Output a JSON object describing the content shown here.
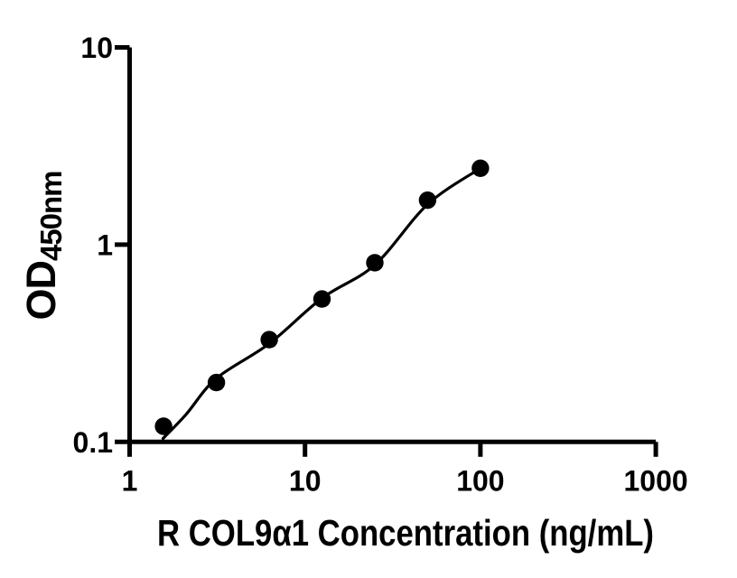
{
  "figure": {
    "background": "#ffffff",
    "foreground": "#000000"
  },
  "chart_data": {
    "type": "scatter",
    "title": "",
    "xlabel": "R COL9α1 Concentration (ng/mL)",
    "ylabel": "OD450nm",
    "ylabel_main": "OD",
    "ylabel_sub": "450nm",
    "x_scale": "log",
    "y_scale": "log",
    "xlim": [
      1,
      1000
    ],
    "ylim": [
      0.1,
      10
    ],
    "grid": false,
    "legend": false,
    "marker_color": "#000000",
    "line_color": "#000000",
    "x_ticks": [
      {
        "value": 1,
        "label": "1"
      },
      {
        "value": 10,
        "label": "10"
      },
      {
        "value": 100,
        "label": "100"
      },
      {
        "value": 1000,
        "label": "1000"
      }
    ],
    "y_ticks": [
      {
        "value": 0.1,
        "label": "0.1"
      },
      {
        "value": 1,
        "label": "1"
      },
      {
        "value": 10,
        "label": "10"
      }
    ],
    "points": {
      "x": [
        1.5625,
        3.125,
        6.25,
        12.5,
        25,
        50,
        100
      ],
      "y": [
        0.12,
        0.2,
        0.33,
        0.53,
        0.81,
        1.68,
        2.44
      ]
    },
    "fit_curve": [
      [
        1.55,
        0.104
      ],
      [
        2.1,
        0.138
      ],
      [
        3.125,
        0.21
      ],
      [
        6.25,
        0.315
      ],
      [
        12.5,
        0.535
      ],
      [
        25,
        0.79
      ],
      [
        50,
        1.6
      ],
      [
        100,
        2.44
      ]
    ]
  }
}
